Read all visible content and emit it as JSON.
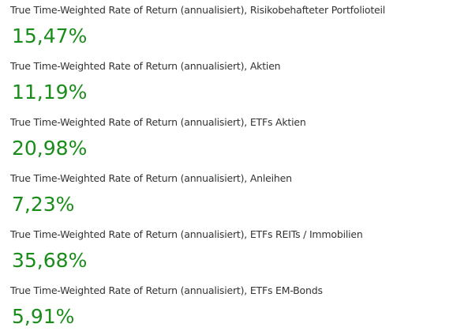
{
  "metrics": [
    {
      "label": "True Time-Weighted Rate of Return (annualisiert), Risikobehafteter Portfolioteil",
      "value": "15,47%"
    },
    {
      "label": "True Time-Weighted Rate of Return (annualisiert), Aktien",
      "value": "11,19%"
    },
    {
      "label": "True Time-Weighted Rate of Return (annualisiert), ETFs Aktien",
      "value": "20,98%"
    },
    {
      "label": "True Time-Weighted Rate of Return (annualisiert), Anleihen",
      "value": "7,23%"
    },
    {
      "label": "True Time-Weighted Rate of Return (annualisiert), ETFs REITs / Immobilien",
      "value": "35,68%"
    },
    {
      "label": "True Time-Weighted Rate of Return (annualisiert), ETFs EM-Bonds",
      "value": "5,91%"
    }
  ]
}
